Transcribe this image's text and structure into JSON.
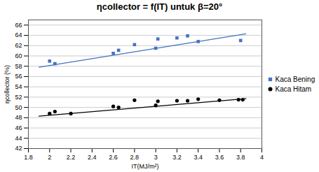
{
  "chart_data": {
    "type": "scatter",
    "title": "ηcollector = f(IT) untuk β=20°",
    "x_label": "IT(MJ/m²)",
    "y_label": "ηcollector (%)",
    "xlim": [
      1.8,
      4.0
    ],
    "ylim": [
      42,
      67
    ],
    "xticks": [
      1.8,
      2,
      2.2,
      2.4,
      2.6,
      2.8,
      3,
      3.2,
      3.4,
      3.6,
      3.8,
      4
    ],
    "yticks": [
      42,
      44,
      46,
      48,
      50,
      52,
      54,
      56,
      58,
      60,
      62,
      64,
      66
    ],
    "grid": "y",
    "legend": "right",
    "series": [
      {
        "name": "Kaca Bening",
        "color": "#4472C4",
        "marker": "square",
        "x": [
          2.0,
          2.05,
          2.6,
          2.65,
          2.8,
          3.0,
          3.02,
          3.2,
          3.3,
          3.4,
          3.8
        ],
        "values": [
          59.0,
          58.5,
          60.5,
          61.1,
          62.2,
          61.5,
          63.3,
          63.5,
          63.9,
          62.8,
          63.0
        ],
        "trend_x": [
          1.9,
          3.85
        ],
        "trend_values": [
          57.8,
          64.3
        ]
      },
      {
        "name": "Kaca Hitam",
        "color": "#000000",
        "marker": "circle",
        "x": [
          2.0,
          2.05,
          2.2,
          2.6,
          2.65,
          2.8,
          3.0,
          3.02,
          3.2,
          3.3,
          3.4,
          3.6,
          3.78,
          3.82
        ],
        "values": [
          48.8,
          49.2,
          48.8,
          50.2,
          50.0,
          51.4,
          50.4,
          51.2,
          51.3,
          51.3,
          51.6,
          51.4,
          51.5,
          51.5
        ],
        "trend_x": [
          1.9,
          3.85
        ],
        "trend_values": [
          48.3,
          51.7
        ]
      }
    ]
  }
}
